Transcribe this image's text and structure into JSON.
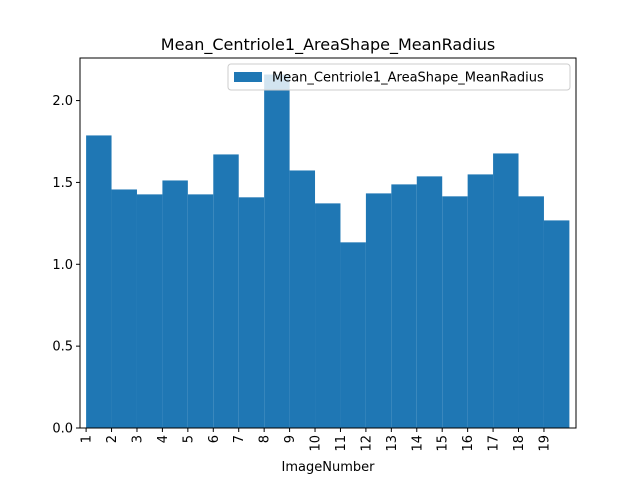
{
  "chart_data": {
    "type": "bar",
    "title": "Mean_Centriole1_AreaShape_MeanRadius",
    "x_label": "ImageNumber",
    "x": [
      1,
      2,
      3,
      4,
      5,
      6,
      7,
      8,
      9,
      10,
      11,
      12,
      13,
      14,
      15,
      16,
      17,
      18,
      19
    ],
    "series": [
      {
        "name": "Mean_Centriole1_AreaShape_MeanRadius",
        "color": "#1f77b4",
        "values": [
          1.787,
          1.457,
          1.427,
          1.512,
          1.427,
          1.671,
          1.409,
          2.159,
          1.573,
          1.372,
          1.134,
          1.433,
          1.488,
          1.537,
          1.415,
          1.549,
          1.677,
          1.415,
          1.268
        ]
      }
    ],
    "xlim": [
      0.76,
      20.26
    ],
    "xticks": [
      1,
      2,
      3,
      4,
      5,
      6,
      7,
      8,
      9,
      10,
      11,
      12,
      13,
      14,
      15,
      16,
      17,
      18,
      19
    ],
    "ylim": [
      0,
      2.26
    ],
    "yticks": [
      {
        "value": 0,
        "label": "0.0"
      },
      {
        "value": 0.5,
        "label": "0.5"
      },
      {
        "value": 1,
        "label": "1.0"
      },
      {
        "value": 1.5,
        "label": "1.5"
      },
      {
        "value": 2,
        "label": "2.0"
      }
    ],
    "legend": "upper right"
  }
}
